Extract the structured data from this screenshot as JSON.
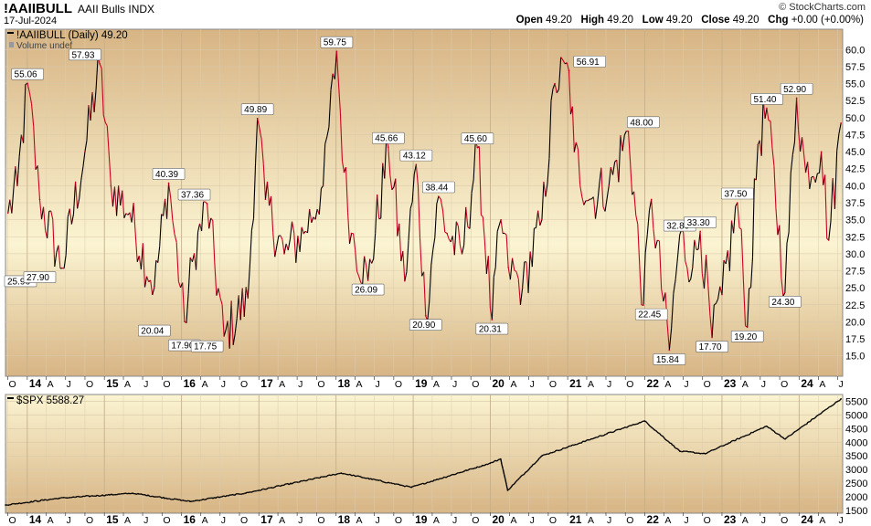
{
  "header": {
    "symbol": "!AAIIBULL",
    "name": "AAII Bulls",
    "exchange": "INDX",
    "date": "17-Jul-2024",
    "watermark": "© StockCharts.com",
    "ohlc": {
      "open_label": "Open",
      "open": "49.20",
      "high_label": "High",
      "high": "49.20",
      "low_label": "Low",
      "low": "49.20",
      "close_label": "Close",
      "close": "49.20",
      "chg_label": "Chg",
      "chg": "+0.00 (+0.00%)"
    }
  },
  "colors": {
    "bg_top": "#d7b484",
    "bg_mid": "#fbf4d2",
    "line_up": "#000000",
    "line_down": "#cc0022"
  },
  "chart_data": [
    {
      "type": "line",
      "title": "!AAIIBULL (Daily) 49.20",
      "volume_note": "Volume undef",
      "ylim": [
        12,
        63
      ],
      "y_ticks": [
        15,
        17.5,
        20,
        22.5,
        25,
        27.5,
        30,
        32.5,
        35,
        37.5,
        40,
        42.5,
        45,
        47.5,
        50,
        52.5,
        55,
        57.5,
        60
      ],
      "y_tick_labels": [
        "15.0",
        "17.5",
        "20.0",
        "22.5",
        "25.0",
        "27.5",
        "30.0",
        "32.5",
        "35.0",
        "37.5",
        "40.0",
        "42.5",
        "45.0",
        "47.5",
        "50.0",
        "52.5",
        "55.0",
        "57.5",
        "60.0"
      ],
      "x_range": [
        "2013-09-20",
        "2024-07-25"
      ],
      "x": [
        "2013-10-02",
        "2013-11-15",
        "2014-01-02",
        "2014-03-01",
        "2014-06-15",
        "2014-10-01",
        "2014-12-10",
        "2015-02-01",
        "2015-05-01",
        "2015-08-25",
        "2015-11-01",
        "2016-01-15",
        "2016-03-01",
        "2016-05-01",
        "2016-07-20",
        "2016-11-10",
        "2016-12-25",
        "2017-02-01",
        "2017-05-01",
        "2017-08-01",
        "2017-11-01",
        "2018-01-04",
        "2018-02-08",
        "2018-03-15",
        "2018-06-01",
        "2018-09-05",
        "2018-11-22",
        "2019-01-15",
        "2019-03-01",
        "2019-05-01",
        "2019-06-10",
        "2019-08-20",
        "2019-11-01",
        "2020-01-09",
        "2020-02-20",
        "2020-03-26",
        "2020-06-01",
        "2020-09-01",
        "2020-11-01",
        "2021-01-07",
        "2021-02-01",
        "2021-04-15",
        "2021-07-15",
        "2021-10-15",
        "2021-12-25",
        "2022-02-01",
        "2022-04-27",
        "2022-06-15",
        "2022-08-15",
        "2022-09-20",
        "2022-11-15",
        "2023-01-01",
        "2023-03-15",
        "2023-05-01",
        "2023-06-20",
        "2023-08-01",
        "2023-10-26",
        "2023-12-20",
        "2024-02-01",
        "2024-04-15",
        "2024-05-20",
        "2024-07-17"
      ],
      "y": [
        36,
        40,
        55.06,
        38,
        27.9,
        45,
        57.93,
        40,
        36,
        25,
        40.39,
        20.04,
        30,
        37.36,
        17.9,
        23.5,
        49.89,
        38,
        30,
        33,
        40,
        59.75,
        42,
        33,
        26.09,
        45.66,
        26,
        43.12,
        20.9,
        38.44,
        33,
        30,
        45.6,
        20.31,
        35,
        28,
        25,
        35,
        55,
        56.91,
        45,
        38,
        40,
        48,
        22.45,
        38,
        15.84,
        32.8,
        28,
        33.3,
        17.7,
        24,
        37.5,
        19.2,
        46,
        51.4,
        24.3,
        52.9,
        42,
        45,
        32,
        49.2
      ],
      "annotations": [
        {
          "date": "2013-09-21",
          "value": 25.96,
          "label": "25.96",
          "pos": "left"
        },
        {
          "date": "2014-01-02",
          "value": 55.06,
          "label": "55.06",
          "pos": "above"
        },
        {
          "date": "2014-03-01",
          "value": 27.9,
          "label": "27.90",
          "pos": "below"
        },
        {
          "date": "2014-10-01",
          "value": 57.93,
          "label": "57.93",
          "pos": "above"
        },
        {
          "date": "2015-08-25",
          "value": 20.04,
          "label": "20.04",
          "pos": "below"
        },
        {
          "date": "2015-11-01",
          "value": 40.39,
          "label": "40.39",
          "pos": "above"
        },
        {
          "date": "2016-01-15",
          "value": 17.9,
          "label": "17.90",
          "pos": "below"
        },
        {
          "date": "2016-03-01",
          "value": 37.36,
          "label": "37.36",
          "pos": "above"
        },
        {
          "date": "2016-05-01",
          "value": 17.75,
          "label": "17.75",
          "pos": "below"
        },
        {
          "date": "2016-12-25",
          "value": 49.89,
          "label": "49.89",
          "pos": "above"
        },
        {
          "date": "2018-01-04",
          "value": 59.75,
          "label": "59.75",
          "pos": "above"
        },
        {
          "date": "2018-06-01",
          "value": 26.09,
          "label": "26.09",
          "pos": "below"
        },
        {
          "date": "2018-09-05",
          "value": 45.66,
          "label": "45.66",
          "pos": "above"
        },
        {
          "date": "2019-01-15",
          "value": 43.12,
          "label": "43.12",
          "pos": "above"
        },
        {
          "date": "2019-03-01",
          "value": 20.9,
          "label": "20.90",
          "pos": "below"
        },
        {
          "date": "2019-05-01",
          "value": 38.44,
          "label": "38.44",
          "pos": "above"
        },
        {
          "date": "2019-11-01",
          "value": 45.6,
          "label": "45.60",
          "pos": "above"
        },
        {
          "date": "2020-01-09",
          "value": 20.31,
          "label": "20.31",
          "pos": "below"
        },
        {
          "date": "2021-04-15",
          "value": 56.91,
          "label": "56.91",
          "pos": "above"
        },
        {
          "date": "2021-12-25",
          "value": 48.0,
          "label": "48.00",
          "pos": "above"
        },
        {
          "date": "2022-02-01",
          "value": 22.45,
          "label": "22.45",
          "pos": "below"
        },
        {
          "date": "2022-04-27",
          "value": 15.84,
          "label": "15.84",
          "pos": "below"
        },
        {
          "date": "2022-06-15",
          "value": 32.8,
          "label": "32.80",
          "pos": "above"
        },
        {
          "date": "2022-09-20",
          "value": 33.3,
          "label": "33.30",
          "pos": "above"
        },
        {
          "date": "2022-11-15",
          "value": 17.7,
          "label": "17.70",
          "pos": "below"
        },
        {
          "date": "2023-03-15",
          "value": 37.5,
          "label": "37.50",
          "pos": "above"
        },
        {
          "date": "2023-05-01",
          "value": 19.2,
          "label": "19.20",
          "pos": "below"
        },
        {
          "date": "2023-08-01",
          "value": 51.4,
          "label": "51.40",
          "pos": "above"
        },
        {
          "date": "2023-10-26",
          "value": 24.3,
          "label": "24.30",
          "pos": "below"
        },
        {
          "date": "2023-12-20",
          "value": 52.9,
          "label": "52.90",
          "pos": "above"
        }
      ]
    },
    {
      "type": "line",
      "title": "$SPX 5588.27",
      "ylim": [
        1400,
        5750
      ],
      "y_ticks": [
        1500,
        2000,
        2500,
        3000,
        3500,
        4000,
        4500,
        5000,
        5500
      ],
      "y_tick_labels": [
        "1500",
        "2000",
        "2500",
        "3000",
        "3500",
        "4000",
        "4500",
        "5000",
        "5500"
      ],
      "x": [
        "2013-09-20",
        "2014-06-01",
        "2015-05-15",
        "2016-02-11",
        "2016-11-01",
        "2018-01-26",
        "2018-12-24",
        "2019-12-31",
        "2020-02-19",
        "2020-03-23",
        "2020-08-31",
        "2021-12-31",
        "2022-06-16",
        "2022-10-13",
        "2023-07-31",
        "2023-10-27",
        "2024-07-17"
      ],
      "y": [
        1700,
        1950,
        2130,
        1830,
        2140,
        2870,
        2350,
        3230,
        3390,
        2240,
        3500,
        4780,
        3670,
        3580,
        4590,
        4120,
        5588.27
      ]
    }
  ],
  "x_axis": {
    "labels": [
      {
        "date": "2013-10-01",
        "label": "O",
        "major": false
      },
      {
        "date": "2014-01-01",
        "label": "14",
        "major": true
      },
      {
        "date": "2014-04-01",
        "label": "A",
        "major": false
      },
      {
        "date": "2014-07-01",
        "label": "J",
        "major": false
      },
      {
        "date": "2014-10-01",
        "label": "O",
        "major": false
      },
      {
        "date": "2015-01-01",
        "label": "15",
        "major": true
      },
      {
        "date": "2015-04-01",
        "label": "A",
        "major": false
      },
      {
        "date": "2015-07-01",
        "label": "J",
        "major": false
      },
      {
        "date": "2015-10-01",
        "label": "O",
        "major": false
      },
      {
        "date": "2016-01-01",
        "label": "16",
        "major": true
      },
      {
        "date": "2016-04-01",
        "label": "A",
        "major": false
      },
      {
        "date": "2016-07-01",
        "label": "J",
        "major": false
      },
      {
        "date": "2016-10-01",
        "label": "O",
        "major": false
      },
      {
        "date": "2017-01-01",
        "label": "17",
        "major": true
      },
      {
        "date": "2017-04-01",
        "label": "A",
        "major": false
      },
      {
        "date": "2017-07-01",
        "label": "J",
        "major": false
      },
      {
        "date": "2017-10-01",
        "label": "O",
        "major": false
      },
      {
        "date": "2018-01-01",
        "label": "18",
        "major": true
      },
      {
        "date": "2018-04-01",
        "label": "A",
        "major": false
      },
      {
        "date": "2018-07-01",
        "label": "J",
        "major": false
      },
      {
        "date": "2018-10-01",
        "label": "O",
        "major": false
      },
      {
        "date": "2019-01-01",
        "label": "19",
        "major": true
      },
      {
        "date": "2019-04-01",
        "label": "A",
        "major": false
      },
      {
        "date": "2019-07-01",
        "label": "J",
        "major": false
      },
      {
        "date": "2019-10-01",
        "label": "O",
        "major": false
      },
      {
        "date": "2020-01-01",
        "label": "20",
        "major": true
      },
      {
        "date": "2020-04-01",
        "label": "A",
        "major": false
      },
      {
        "date": "2020-07-01",
        "label": "J",
        "major": false
      },
      {
        "date": "2020-10-01",
        "label": "O",
        "major": false
      },
      {
        "date": "2021-01-01",
        "label": "21",
        "major": true
      },
      {
        "date": "2021-04-01",
        "label": "A",
        "major": false
      },
      {
        "date": "2021-07-01",
        "label": "J",
        "major": false
      },
      {
        "date": "2021-10-01",
        "label": "O",
        "major": false
      },
      {
        "date": "2022-01-01",
        "label": "22",
        "major": true
      },
      {
        "date": "2022-04-01",
        "label": "A",
        "major": false
      },
      {
        "date": "2022-07-01",
        "label": "J",
        "major": false
      },
      {
        "date": "2022-10-01",
        "label": "O",
        "major": false
      },
      {
        "date": "2023-01-01",
        "label": "23",
        "major": true
      },
      {
        "date": "2023-04-01",
        "label": "A",
        "major": false
      },
      {
        "date": "2023-07-01",
        "label": "J",
        "major": false
      },
      {
        "date": "2023-10-01",
        "label": "O",
        "major": false
      },
      {
        "date": "2024-01-01",
        "label": "24",
        "major": true
      },
      {
        "date": "2024-04-01",
        "label": "A",
        "major": false
      },
      {
        "date": "2024-07-01",
        "label": "J",
        "major": false
      }
    ]
  }
}
